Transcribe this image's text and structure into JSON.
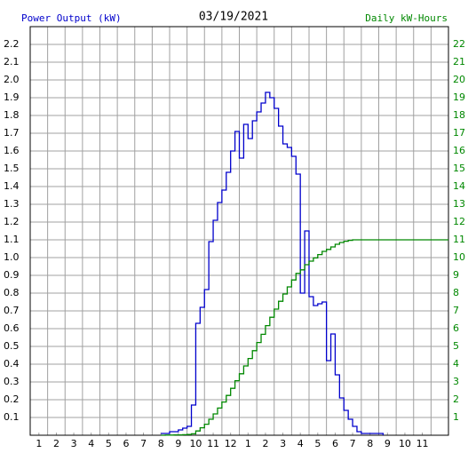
{
  "chart_data": {
    "type": "step",
    "title": "03/19/2021",
    "y_label": "Power Output (kW)",
    "y2_label": "Daily kW-Hours",
    "xlim": [
      0.5,
      24.5
    ],
    "xticks": [
      1,
      2,
      3,
      4,
      5,
      6,
      7,
      8,
      9,
      10,
      11,
      {
        "value": 12,
        "label": "12"
      },
      {
        "value": 13,
        "label": "1"
      },
      {
        "value": 14,
        "label": "2"
      },
      {
        "value": 15,
        "label": "3"
      },
      {
        "value": 16,
        "label": "4"
      },
      {
        "value": 17,
        "label": "5"
      },
      {
        "value": 18,
        "label": "6"
      },
      {
        "value": 19,
        "label": "7"
      },
      {
        "value": 20,
        "label": "8"
      },
      {
        "value": 21,
        "label": "9"
      },
      {
        "value": 22,
        "label": "10"
      },
      {
        "value": 23,
        "label": "11"
      }
    ],
    "xgrid": [
      1.5,
      2.5,
      3.5,
      4.5,
      5.5,
      6.5,
      7.5,
      8.5,
      9.5,
      10.5,
      11.5,
      12.5,
      13.5,
      14.5,
      15.5,
      16.5,
      17.5,
      18.5,
      19.5,
      20.5,
      21.5,
      22.5,
      23.5
    ],
    "ylim": [
      0,
      2.3
    ],
    "yticks": [
      0.1,
      0.2,
      0.3,
      0.4,
      0.5,
      0.6,
      0.7,
      0.8,
      0.9,
      {
        "value": 1,
        "label": "1.0"
      },
      1.1,
      1.2,
      1.3,
      1.4,
      1.5,
      1.6,
      1.7,
      1.8,
      1.9,
      {
        "value": 2,
        "label": "2.0"
      },
      2.1,
      2.2
    ],
    "y2lim": [
      0,
      23
    ],
    "y2ticks": [
      1,
      2,
      3,
      4,
      5,
      6,
      7,
      8,
      9,
      10,
      11,
      12,
      13,
      14,
      15,
      16,
      17,
      18,
      19,
      20,
      21,
      22
    ],
    "grid": true,
    "series": [
      {
        "name": "Power Output (kW)",
        "color": "#0000cc",
        "x": [
          8,
          8.25,
          8.5,
          8.75,
          9,
          9.25,
          9.5,
          9.75,
          10,
          10.25,
          10.5,
          10.75,
          11,
          11.25,
          11.5,
          11.75,
          12,
          12.25,
          12.5,
          12.75,
          13,
          13.25,
          13.5,
          13.75,
          14,
          14.25,
          14.5,
          14.75,
          15,
          15.25,
          15.5,
          15.75,
          16,
          16.25,
          16.5,
          16.75,
          17,
          17.25,
          17.5,
          17.75,
          18,
          18.25,
          18.5,
          18.75,
          19,
          19.25,
          19.5,
          19.75,
          20,
          20.25,
          20.5,
          20.75
        ],
        "values": [
          0.01,
          0.01,
          0.02,
          0.02,
          0.03,
          0.04,
          0.05,
          0.17,
          0.63,
          0.72,
          0.82,
          1.09,
          1.21,
          1.31,
          1.38,
          1.48,
          1.6,
          1.71,
          1.56,
          1.75,
          1.67,
          1.77,
          1.82,
          1.87,
          1.93,
          1.9,
          1.84,
          1.74,
          1.64,
          1.62,
          1.57,
          1.47,
          0.8,
          1.15,
          0.78,
          0.73,
          0.74,
          0.75,
          0.42,
          0.57,
          0.34,
          0.21,
          0.14,
          0.09,
          0.05,
          0.02,
          0.01,
          0.01,
          0.01,
          0.01,
          0.01,
          0
        ]
      },
      {
        "name": "Daily kW-Hours",
        "color": "#008800",
        "axis": "y2",
        "x": [
          8,
          8.25,
          8.5,
          8.75,
          9,
          9.25,
          9.5,
          9.75,
          10,
          10.25,
          10.5,
          10.75,
          11,
          11.25,
          11.5,
          11.75,
          12,
          12.25,
          12.5,
          12.75,
          13,
          13.25,
          13.5,
          13.75,
          14,
          14.25,
          14.5,
          14.75,
          15,
          15.25,
          15.5,
          15.75,
          16,
          16.25,
          16.5,
          16.75,
          17,
          17.25,
          17.5,
          17.75,
          18,
          18.25,
          18.5,
          18.75,
          19,
          24.5
        ],
        "values": [
          0,
          0.01,
          0.01,
          0.02,
          0.02,
          0.03,
          0.04,
          0.08,
          0.24,
          0.42,
          0.62,
          0.9,
          1.2,
          1.53,
          1.87,
          2.24,
          2.64,
          3.07,
          3.46,
          3.9,
          4.32,
          4.76,
          5.22,
          5.68,
          6.17,
          6.64,
          7.1,
          7.54,
          7.95,
          8.35,
          8.74,
          9.11,
          9.31,
          9.6,
          9.8,
          9.98,
          10.17,
          10.35,
          10.46,
          10.6,
          10.75,
          10.85,
          10.92,
          10.97,
          11,
          11
        ]
      }
    ]
  }
}
